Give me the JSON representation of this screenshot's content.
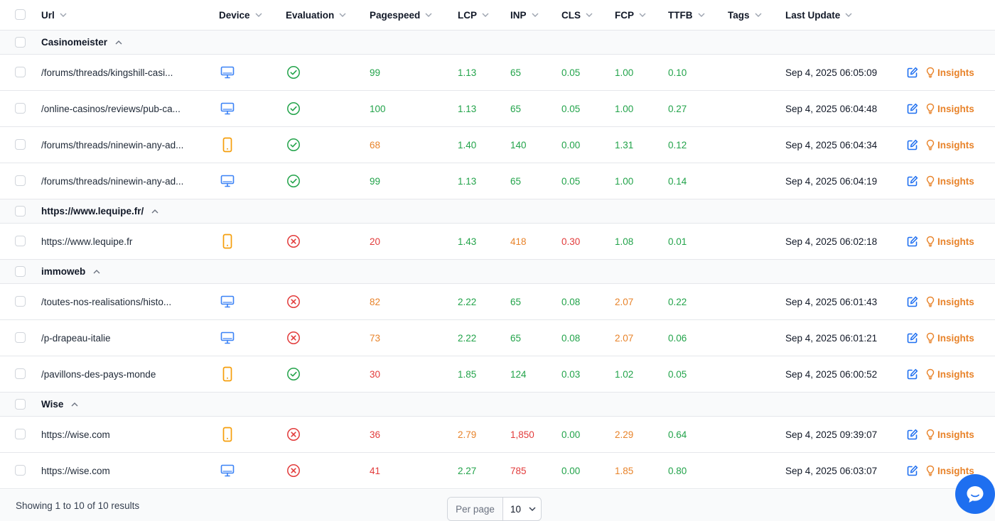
{
  "columns": {
    "url": "Url",
    "device": "Device",
    "evaluation": "Evaluation",
    "pagespeed": "Pagespeed",
    "lcp": "LCP",
    "inp": "INP",
    "cls": "CLS",
    "fcp": "FCP",
    "ttfb": "TTFB",
    "tags": "Tags",
    "last_update": "Last Update"
  },
  "insights_label": "Insights",
  "colors": {
    "green": "#22a34a",
    "orange": "#e8832a",
    "red": "#e23b3b",
    "desktop": "#3b82f6",
    "mobile": "#f59e0b",
    "accent": "#1e6ff0"
  },
  "groups": [
    {
      "name": "Casinomeister",
      "rows": [
        {
          "url": "/forums/threads/kingshill-casi...",
          "device": "desktop",
          "evaluation": "pass",
          "pagespeed": {
            "v": "99",
            "c": "green"
          },
          "lcp": {
            "v": "1.13",
            "c": "green"
          },
          "inp": {
            "v": "65",
            "c": "green"
          },
          "cls": {
            "v": "0.05",
            "c": "green"
          },
          "fcp": {
            "v": "1.00",
            "c": "green"
          },
          "ttfb": {
            "v": "0.10",
            "c": "green"
          },
          "tags": "",
          "updated": "Sep 4, 2025 06:05:09"
        },
        {
          "url": "/online-casinos/reviews/pub-ca...",
          "device": "desktop",
          "evaluation": "pass",
          "pagespeed": {
            "v": "100",
            "c": "green"
          },
          "lcp": {
            "v": "1.13",
            "c": "green"
          },
          "inp": {
            "v": "65",
            "c": "green"
          },
          "cls": {
            "v": "0.05",
            "c": "green"
          },
          "fcp": {
            "v": "1.00",
            "c": "green"
          },
          "ttfb": {
            "v": "0.27",
            "c": "green"
          },
          "tags": "",
          "updated": "Sep 4, 2025 06:04:48"
        },
        {
          "url": "/forums/threads/ninewin-any-ad...",
          "device": "mobile",
          "evaluation": "pass",
          "pagespeed": {
            "v": "68",
            "c": "orange"
          },
          "lcp": {
            "v": "1.40",
            "c": "green"
          },
          "inp": {
            "v": "140",
            "c": "green"
          },
          "cls": {
            "v": "0.00",
            "c": "green"
          },
          "fcp": {
            "v": "1.31",
            "c": "green"
          },
          "ttfb": {
            "v": "0.12",
            "c": "green"
          },
          "tags": "",
          "updated": "Sep 4, 2025 06:04:34"
        },
        {
          "url": "/forums/threads/ninewin-any-ad...",
          "device": "desktop",
          "evaluation": "pass",
          "pagespeed": {
            "v": "99",
            "c": "green"
          },
          "lcp": {
            "v": "1.13",
            "c": "green"
          },
          "inp": {
            "v": "65",
            "c": "green"
          },
          "cls": {
            "v": "0.05",
            "c": "green"
          },
          "fcp": {
            "v": "1.00",
            "c": "green"
          },
          "ttfb": {
            "v": "0.14",
            "c": "green"
          },
          "tags": "",
          "updated": "Sep 4, 2025 06:04:19"
        }
      ]
    },
    {
      "name": "https://www.lequipe.fr/",
      "rows": [
        {
          "url": "https://www.lequipe.fr",
          "device": "mobile",
          "evaluation": "fail",
          "pagespeed": {
            "v": "20",
            "c": "red"
          },
          "lcp": {
            "v": "1.43",
            "c": "green"
          },
          "inp": {
            "v": "418",
            "c": "orange"
          },
          "cls": {
            "v": "0.30",
            "c": "red"
          },
          "fcp": {
            "v": "1.08",
            "c": "green"
          },
          "ttfb": {
            "v": "0.01",
            "c": "green"
          },
          "tags": "",
          "updated": "Sep 4, 2025 06:02:18"
        }
      ]
    },
    {
      "name": "immoweb",
      "rows": [
        {
          "url": "/toutes-nos-realisations/histo...",
          "device": "desktop",
          "evaluation": "fail",
          "pagespeed": {
            "v": "82",
            "c": "orange"
          },
          "lcp": {
            "v": "2.22",
            "c": "green"
          },
          "inp": {
            "v": "65",
            "c": "green"
          },
          "cls": {
            "v": "0.08",
            "c": "green"
          },
          "fcp": {
            "v": "2.07",
            "c": "orange"
          },
          "ttfb": {
            "v": "0.22",
            "c": "green"
          },
          "tags": "",
          "updated": "Sep 4, 2025 06:01:43"
        },
        {
          "url": "/p-drapeau-italie",
          "device": "desktop",
          "evaluation": "fail",
          "pagespeed": {
            "v": "73",
            "c": "orange"
          },
          "lcp": {
            "v": "2.22",
            "c": "green"
          },
          "inp": {
            "v": "65",
            "c": "green"
          },
          "cls": {
            "v": "0.08",
            "c": "green"
          },
          "fcp": {
            "v": "2.07",
            "c": "orange"
          },
          "ttfb": {
            "v": "0.06",
            "c": "green"
          },
          "tags": "",
          "updated": "Sep 4, 2025 06:01:21"
        },
        {
          "url": "/pavillons-des-pays-monde",
          "device": "mobile",
          "evaluation": "pass",
          "pagespeed": {
            "v": "30",
            "c": "red"
          },
          "lcp": {
            "v": "1.85",
            "c": "green"
          },
          "inp": {
            "v": "124",
            "c": "green"
          },
          "cls": {
            "v": "0.03",
            "c": "green"
          },
          "fcp": {
            "v": "1.02",
            "c": "green"
          },
          "ttfb": {
            "v": "0.05",
            "c": "green"
          },
          "tags": "",
          "updated": "Sep 4, 2025 06:00:52"
        }
      ]
    },
    {
      "name": "Wise",
      "rows": [
        {
          "url": "https://wise.com",
          "device": "mobile",
          "evaluation": "fail",
          "pagespeed": {
            "v": "36",
            "c": "red"
          },
          "lcp": {
            "v": "2.79",
            "c": "orange"
          },
          "inp": {
            "v": "1,850",
            "c": "red"
          },
          "cls": {
            "v": "0.00",
            "c": "green"
          },
          "fcp": {
            "v": "2.29",
            "c": "orange"
          },
          "ttfb": {
            "v": "0.64",
            "c": "green"
          },
          "tags": "",
          "updated": "Sep 4, 2025 09:39:07"
        },
        {
          "url": "https://wise.com",
          "device": "desktop",
          "evaluation": "fail",
          "pagespeed": {
            "v": "41",
            "c": "red"
          },
          "lcp": {
            "v": "2.27",
            "c": "green"
          },
          "inp": {
            "v": "785",
            "c": "red"
          },
          "cls": {
            "v": "0.00",
            "c": "green"
          },
          "fcp": {
            "v": "1.85",
            "c": "orange"
          },
          "ttfb": {
            "v": "0.80",
            "c": "green"
          },
          "tags": "",
          "updated": "Sep 4, 2025 06:03:07"
        }
      ]
    }
  ],
  "footer": {
    "showing": "Showing 1 to 10 of 10 results",
    "per_page_label": "Per page",
    "per_page_value": "10"
  }
}
